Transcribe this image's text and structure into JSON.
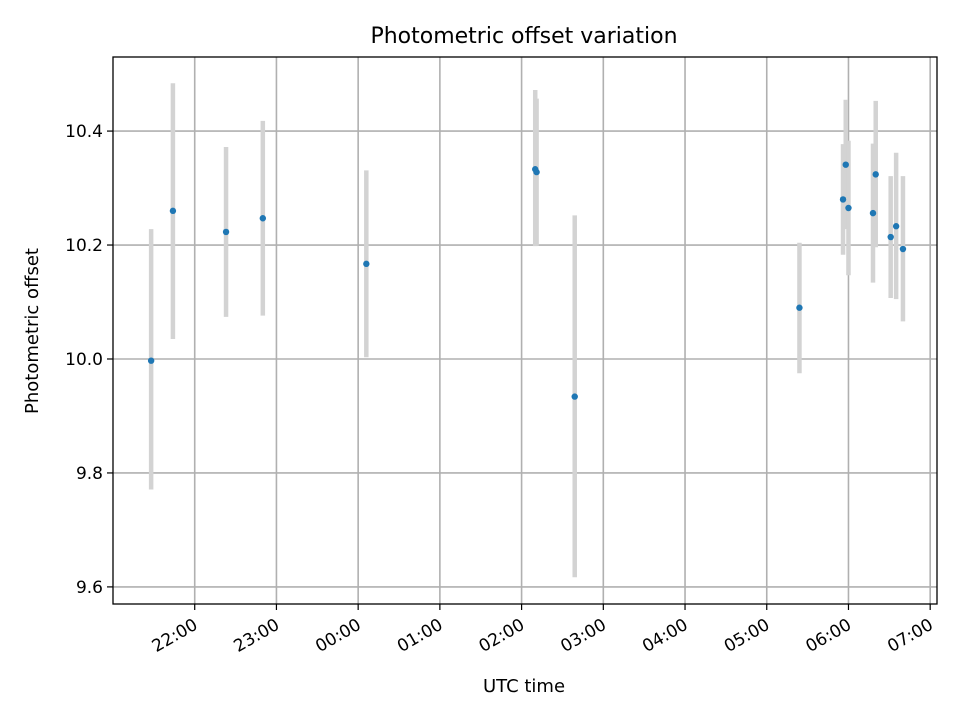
{
  "chart_data": {
    "type": "scatter",
    "title": "Photometric offset variation",
    "xlabel": "UTC time",
    "ylabel": "Photometric offset",
    "x_axis_kind": "time",
    "xlim": [
      "21:00",
      "07:05"
    ],
    "ylim": [
      9.57,
      10.53
    ],
    "grid": true,
    "legend": "none",
    "x_ticks": [
      "22:00",
      "23:00",
      "00:00",
      "01:00",
      "02:00",
      "03:00",
      "04:00",
      "05:00",
      "06:00",
      "07:00"
    ],
    "y_ticks": [
      9.6,
      9.8,
      10.0,
      10.2,
      10.4
    ],
    "y_tick_labels": [
      "9.6",
      "9.8",
      "10.0",
      "10.2",
      "10.4"
    ],
    "colors": {
      "marker": "#1f77b4",
      "errorbar": "#d3d3d3"
    },
    "series": [
      {
        "x": [
          "21:28",
          "21:44",
          "22:23",
          "22:50",
          "00:06",
          "02:10",
          "02:11",
          "02:39",
          "05:24",
          "05:56",
          "05:58",
          "06:00",
          "06:18",
          "06:20",
          "06:31",
          "06:35",
          "06:40"
        ],
        "y": [
          9.997,
          10.26,
          10.223,
          10.247,
          10.167,
          10.333,
          10.328,
          9.934,
          10.09,
          10.28,
          10.341,
          10.265,
          10.256,
          10.324,
          10.214,
          10.233,
          10.193
        ],
        "err_low": [
          9.771,
          10.035,
          10.074,
          10.076,
          10.003,
          10.198,
          10.199,
          9.617,
          9.975,
          10.183,
          10.228,
          10.147,
          10.134,
          10.196,
          10.107,
          10.105,
          10.066
        ],
        "err_high": [
          10.228,
          10.484,
          10.372,
          10.418,
          10.331,
          10.472,
          10.457,
          10.252,
          10.204,
          10.377,
          10.455,
          10.383,
          10.378,
          10.453,
          10.321,
          10.362,
          10.321
        ]
      }
    ]
  }
}
